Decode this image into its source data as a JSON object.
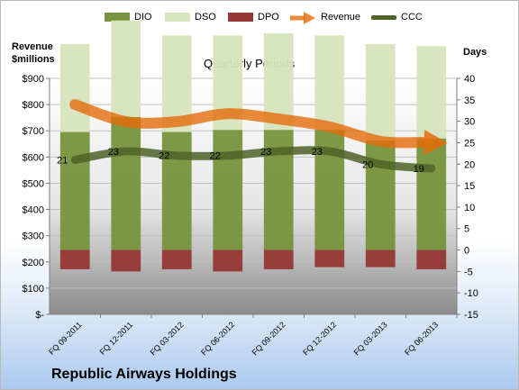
{
  "company_title": "Republic Airways Holdings",
  "colors": {
    "dio": "#77933c",
    "dso": "#d7e4bd",
    "dpo": "#953735",
    "revenue": "#e46c0a",
    "ccc": "#4f6228"
  },
  "chart_data": {
    "type": "bar",
    "title": "Quarterly Periods",
    "y_left_label": [
      "Revenue",
      "$millions"
    ],
    "y_right_label": "Days",
    "left_axis": {
      "range": [
        0,
        900
      ],
      "ticks": [
        "$-",
        "$100",
        "$200",
        "$300",
        "$400",
        "$500",
        "$600",
        "$700",
        "$800",
        "$900"
      ]
    },
    "right_axis": {
      "range": [
        -15,
        40
      ],
      "ticks": [
        "-15",
        "-10",
        "-5",
        "0",
        "5",
        "10",
        "15",
        "20",
        "25",
        "30",
        "35",
        "40"
      ]
    },
    "categories": [
      "FQ 09-2011",
      "FQ 12-2011",
      "FQ 03-2012",
      "FQ 06-2012",
      "FQ 09-2012",
      "FQ 12-2012",
      "FQ 03-2013",
      "FQ 06-2013"
    ],
    "legend": [
      {
        "key": "dio",
        "label": "DIO"
      },
      {
        "key": "dso",
        "label": "DSO"
      },
      {
        "key": "dpo",
        "label": "DPO"
      },
      {
        "key": "revenue",
        "label": "Revenue"
      },
      {
        "key": "ccc",
        "label": "CCC"
      }
    ],
    "series": [
      {
        "name": "DIO",
        "axis": "right",
        "values": [
          27.5,
          31,
          27.5,
          28,
          28,
          28,
          25.5,
          26
        ]
      },
      {
        "name": "DSO",
        "axis": "right",
        "values": [
          20.5,
          22.5,
          22.5,
          22,
          22.5,
          22,
          22.5,
          21.5
        ]
      },
      {
        "name": "DPO",
        "axis": "right",
        "values": [
          -4.5,
          -5,
          -4.5,
          -5,
          -4.5,
          -4,
          -4,
          -4.5
        ]
      },
      {
        "name": "Revenue",
        "axis": "left",
        "values": [
          800,
          735,
          735,
          765,
          745,
          715,
          660,
          655
        ]
      },
      {
        "name": "CCC",
        "axis": "right",
        "values": [
          21,
          23,
          22,
          22,
          23,
          23,
          20,
          19
        ]
      }
    ],
    "ccc_labels": [
      "21",
      "23",
      "22",
      "22",
      "23",
      "23",
      "20",
      "19"
    ]
  }
}
